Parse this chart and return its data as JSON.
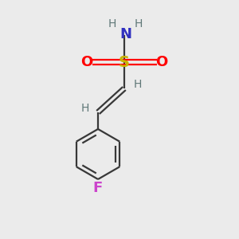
{
  "bg_color": "#ebebeb",
  "bond_color": "#383838",
  "S_color": "#c8b400",
  "O_color": "#ff0000",
  "N_color": "#3030c0",
  "F_color": "#cc44cc",
  "H_color": "#607878",
  "line_width": 1.6,
  "figsize": [
    3.0,
    3.0
  ],
  "dpi": 100,
  "xlim": [
    0,
    10
  ],
  "ylim": [
    0,
    10
  ]
}
